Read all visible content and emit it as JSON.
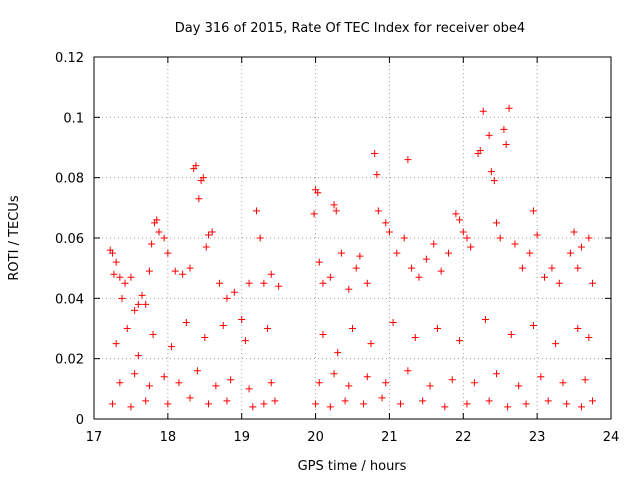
{
  "chart_data": {
    "type": "scatter",
    "title": "Day 316 of 2015, Rate Of TEC Index for receiver obe4",
    "xlabel": "GPS time / hours",
    "ylabel": "ROTI / TECUs",
    "xlim": [
      17,
      24
    ],
    "ylim": [
      0,
      0.12
    ],
    "xticks": [
      "17",
      "18",
      "19",
      "20",
      "21",
      "22",
      "23",
      "24"
    ],
    "yticks": [
      "0",
      "0.02",
      "0.04",
      "0.06",
      "0.08",
      "0.1",
      "0.12"
    ],
    "grid": true,
    "marker": "+",
    "color": "#ff0000",
    "series": [
      {
        "name": "ROTI",
        "points": [
          [
            17.22,
            0.056
          ],
          [
            17.25,
            0.055
          ],
          [
            17.27,
            0.048
          ],
          [
            17.3,
            0.052
          ],
          [
            17.35,
            0.047
          ],
          [
            17.38,
            0.04
          ],
          [
            17.42,
            0.045
          ],
          [
            17.5,
            0.047
          ],
          [
            17.55,
            0.036
          ],
          [
            17.6,
            0.038
          ],
          [
            17.65,
            0.041
          ],
          [
            17.7,
            0.038
          ],
          [
            17.75,
            0.049
          ],
          [
            17.78,
            0.058
          ],
          [
            17.82,
            0.065
          ],
          [
            17.85,
            0.066
          ],
          [
            17.88,
            0.062
          ],
          [
            17.95,
            0.06
          ],
          [
            18.0,
            0.055
          ],
          [
            18.1,
            0.049
          ],
          [
            18.2,
            0.048
          ],
          [
            18.3,
            0.05
          ],
          [
            18.35,
            0.083
          ],
          [
            18.38,
            0.084
          ],
          [
            18.42,
            0.073
          ],
          [
            18.45,
            0.079
          ],
          [
            18.48,
            0.08
          ],
          [
            18.52,
            0.057
          ],
          [
            18.55,
            0.061
          ],
          [
            18.6,
            0.062
          ],
          [
            18.7,
            0.045
          ],
          [
            18.8,
            0.04
          ],
          [
            18.9,
            0.042
          ],
          [
            19.0,
            0.033
          ],
          [
            19.1,
            0.045
          ],
          [
            19.2,
            0.069
          ],
          [
            19.25,
            0.06
          ],
          [
            19.3,
            0.045
          ],
          [
            19.4,
            0.048
          ],
          [
            19.5,
            0.044
          ],
          [
            17.3,
            0.025
          ],
          [
            17.45,
            0.03
          ],
          [
            17.6,
            0.021
          ],
          [
            17.8,
            0.028
          ],
          [
            18.05,
            0.024
          ],
          [
            18.25,
            0.032
          ],
          [
            18.5,
            0.027
          ],
          [
            18.75,
            0.031
          ],
          [
            19.05,
            0.026
          ],
          [
            19.35,
            0.03
          ],
          [
            17.35,
            0.012
          ],
          [
            17.55,
            0.015
          ],
          [
            17.75,
            0.011
          ],
          [
            17.95,
            0.014
          ],
          [
            18.15,
            0.012
          ],
          [
            18.4,
            0.016
          ],
          [
            18.65,
            0.011
          ],
          [
            18.85,
            0.013
          ],
          [
            19.1,
            0.01
          ],
          [
            19.4,
            0.012
          ],
          [
            17.25,
            0.005
          ],
          [
            17.5,
            0.004
          ],
          [
            17.7,
            0.006
          ],
          [
            18.0,
            0.005
          ],
          [
            18.3,
            0.007
          ],
          [
            18.55,
            0.005
          ],
          [
            18.8,
            0.006
          ],
          [
            19.15,
            0.004
          ],
          [
            19.3,
            0.005
          ],
          [
            19.45,
            0.006
          ],
          [
            19.98,
            0.068
          ],
          [
            20.0,
            0.076
          ],
          [
            20.03,
            0.075
          ],
          [
            20.05,
            0.052
          ],
          [
            20.1,
            0.045
          ],
          [
            20.2,
            0.047
          ],
          [
            20.25,
            0.071
          ],
          [
            20.28,
            0.069
          ],
          [
            20.35,
            0.055
          ],
          [
            20.45,
            0.043
          ],
          [
            20.55,
            0.05
          ],
          [
            20.6,
            0.054
          ],
          [
            20.7,
            0.045
          ],
          [
            20.8,
            0.088
          ],
          [
            20.83,
            0.081
          ],
          [
            20.85,
            0.069
          ],
          [
            20.95,
            0.065
          ],
          [
            21.0,
            0.062
          ],
          [
            21.1,
            0.055
          ],
          [
            21.2,
            0.06
          ],
          [
            21.25,
            0.086
          ],
          [
            21.3,
            0.05
          ],
          [
            21.4,
            0.047
          ],
          [
            21.5,
            0.053
          ],
          [
            21.6,
            0.058
          ],
          [
            21.7,
            0.049
          ],
          [
            21.8,
            0.055
          ],
          [
            21.9,
            0.068
          ],
          [
            21.95,
            0.066
          ],
          [
            22.0,
            0.062
          ],
          [
            22.05,
            0.06
          ],
          [
            22.1,
            0.057
          ],
          [
            22.2,
            0.088
          ],
          [
            22.23,
            0.089
          ],
          [
            22.27,
            0.102
          ],
          [
            22.35,
            0.094
          ],
          [
            22.38,
            0.082
          ],
          [
            22.42,
            0.079
          ],
          [
            22.45,
            0.065
          ],
          [
            22.5,
            0.06
          ],
          [
            22.55,
            0.096
          ],
          [
            22.58,
            0.091
          ],
          [
            22.62,
            0.103
          ],
          [
            22.7,
            0.058
          ],
          [
            22.8,
            0.05
          ],
          [
            22.9,
            0.055
          ],
          [
            22.95,
            0.069
          ],
          [
            23.0,
            0.061
          ],
          [
            23.1,
            0.047
          ],
          [
            23.2,
            0.05
          ],
          [
            23.3,
            0.045
          ],
          [
            23.45,
            0.055
          ],
          [
            23.5,
            0.062
          ],
          [
            23.55,
            0.05
          ],
          [
            23.6,
            0.057
          ],
          [
            23.7,
            0.06
          ],
          [
            23.75,
            0.045
          ],
          [
            20.1,
            0.028
          ],
          [
            20.3,
            0.022
          ],
          [
            20.5,
            0.03
          ],
          [
            20.75,
            0.025
          ],
          [
            21.05,
            0.032
          ],
          [
            21.35,
            0.027
          ],
          [
            21.65,
            0.03
          ],
          [
            21.95,
            0.026
          ],
          [
            22.3,
            0.033
          ],
          [
            22.65,
            0.028
          ],
          [
            22.95,
            0.031
          ],
          [
            23.25,
            0.025
          ],
          [
            23.55,
            0.03
          ],
          [
            23.7,
            0.027
          ],
          [
            20.05,
            0.012
          ],
          [
            20.25,
            0.015
          ],
          [
            20.45,
            0.011
          ],
          [
            20.7,
            0.014
          ],
          [
            20.95,
            0.012
          ],
          [
            21.25,
            0.016
          ],
          [
            21.55,
            0.011
          ],
          [
            21.85,
            0.013
          ],
          [
            22.15,
            0.012
          ],
          [
            22.45,
            0.015
          ],
          [
            22.75,
            0.011
          ],
          [
            23.05,
            0.014
          ],
          [
            23.35,
            0.012
          ],
          [
            23.65,
            0.013
          ],
          [
            20.0,
            0.005
          ],
          [
            20.2,
            0.004
          ],
          [
            20.4,
            0.006
          ],
          [
            20.65,
            0.005
          ],
          [
            20.9,
            0.007
          ],
          [
            21.15,
            0.005
          ],
          [
            21.45,
            0.006
          ],
          [
            21.75,
            0.004
          ],
          [
            22.05,
            0.005
          ],
          [
            22.35,
            0.006
          ],
          [
            22.6,
            0.004
          ],
          [
            22.85,
            0.005
          ],
          [
            23.15,
            0.006
          ],
          [
            23.4,
            0.005
          ],
          [
            23.6,
            0.004
          ],
          [
            23.75,
            0.006
          ]
        ]
      }
    ]
  }
}
